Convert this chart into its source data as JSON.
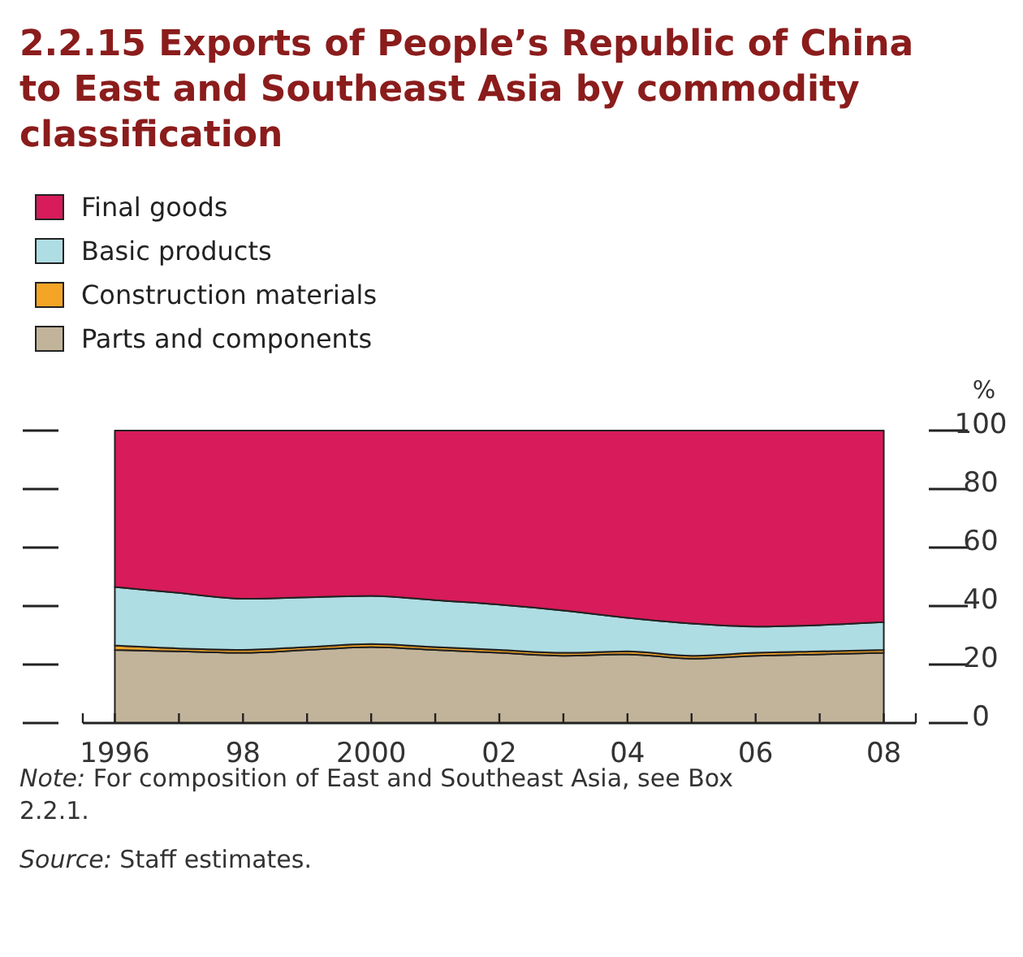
{
  "chart_data": {
    "type": "area",
    "stacked": true,
    "title": "2.2.15 Exports of People’s Republic of China to East and Southeast Asia by commodity classification",
    "ylabel": "%",
    "x": [
      1996,
      1997,
      1998,
      1999,
      2000,
      2001,
      2002,
      2003,
      2004,
      2005,
      2006,
      2007,
      2008
    ],
    "series": [
      {
        "name": "Parts and components",
        "color": "#c2b49a",
        "values": [
          25,
          24.5,
          24,
          25,
          26,
          25,
          24,
          23,
          23.5,
          22,
          23,
          23.5,
          24
        ]
      },
      {
        "name": "Construction materials",
        "color": "#f4a526",
        "values": [
          1.5,
          1,
          1,
          1,
          1,
          1,
          1,
          1,
          1,
          1,
          1,
          1,
          1
        ]
      },
      {
        "name": "Basic products",
        "color": "#aedde3",
        "values": [
          20,
          19,
          17.5,
          17,
          16.5,
          16,
          15.5,
          14.5,
          11.5,
          11,
          9,
          9,
          9.5
        ]
      },
      {
        "name": "Final goods",
        "color": "#d81b5a",
        "values": [
          53.5,
          55.5,
          57.5,
          57,
          56.5,
          58,
          59.5,
          61.5,
          64,
          66,
          67,
          66.5,
          65.5
        ]
      }
    ],
    "xlim": [
      1995.5,
      2008.5
    ],
    "xticks": [
      {
        "value": 1996,
        "label": "1996"
      },
      {
        "value": 1997,
        "label": null
      },
      {
        "value": 1998,
        "label": "98"
      },
      {
        "value": 1999,
        "label": null
      },
      {
        "value": 2000,
        "label": "2000"
      },
      {
        "value": 2001,
        "label": null
      },
      {
        "value": 2002,
        "label": "02"
      },
      {
        "value": 2003,
        "label": null
      },
      {
        "value": 2004,
        "label": "04"
      },
      {
        "value": 2005,
        "label": null
      },
      {
        "value": 2006,
        "label": "06"
      },
      {
        "value": 2007,
        "label": null
      },
      {
        "value": 2008,
        "label": "08"
      }
    ],
    "ylim": [
      0,
      100
    ],
    "yticks": [
      0,
      20,
      40,
      60,
      80,
      100
    ],
    "legend": "top left",
    "grid": false,
    "annotations": [
      "Note: For composition of East and Southeast Asia, see Box 2.2.1.",
      "Source: Staff estimates."
    ]
  }
}
